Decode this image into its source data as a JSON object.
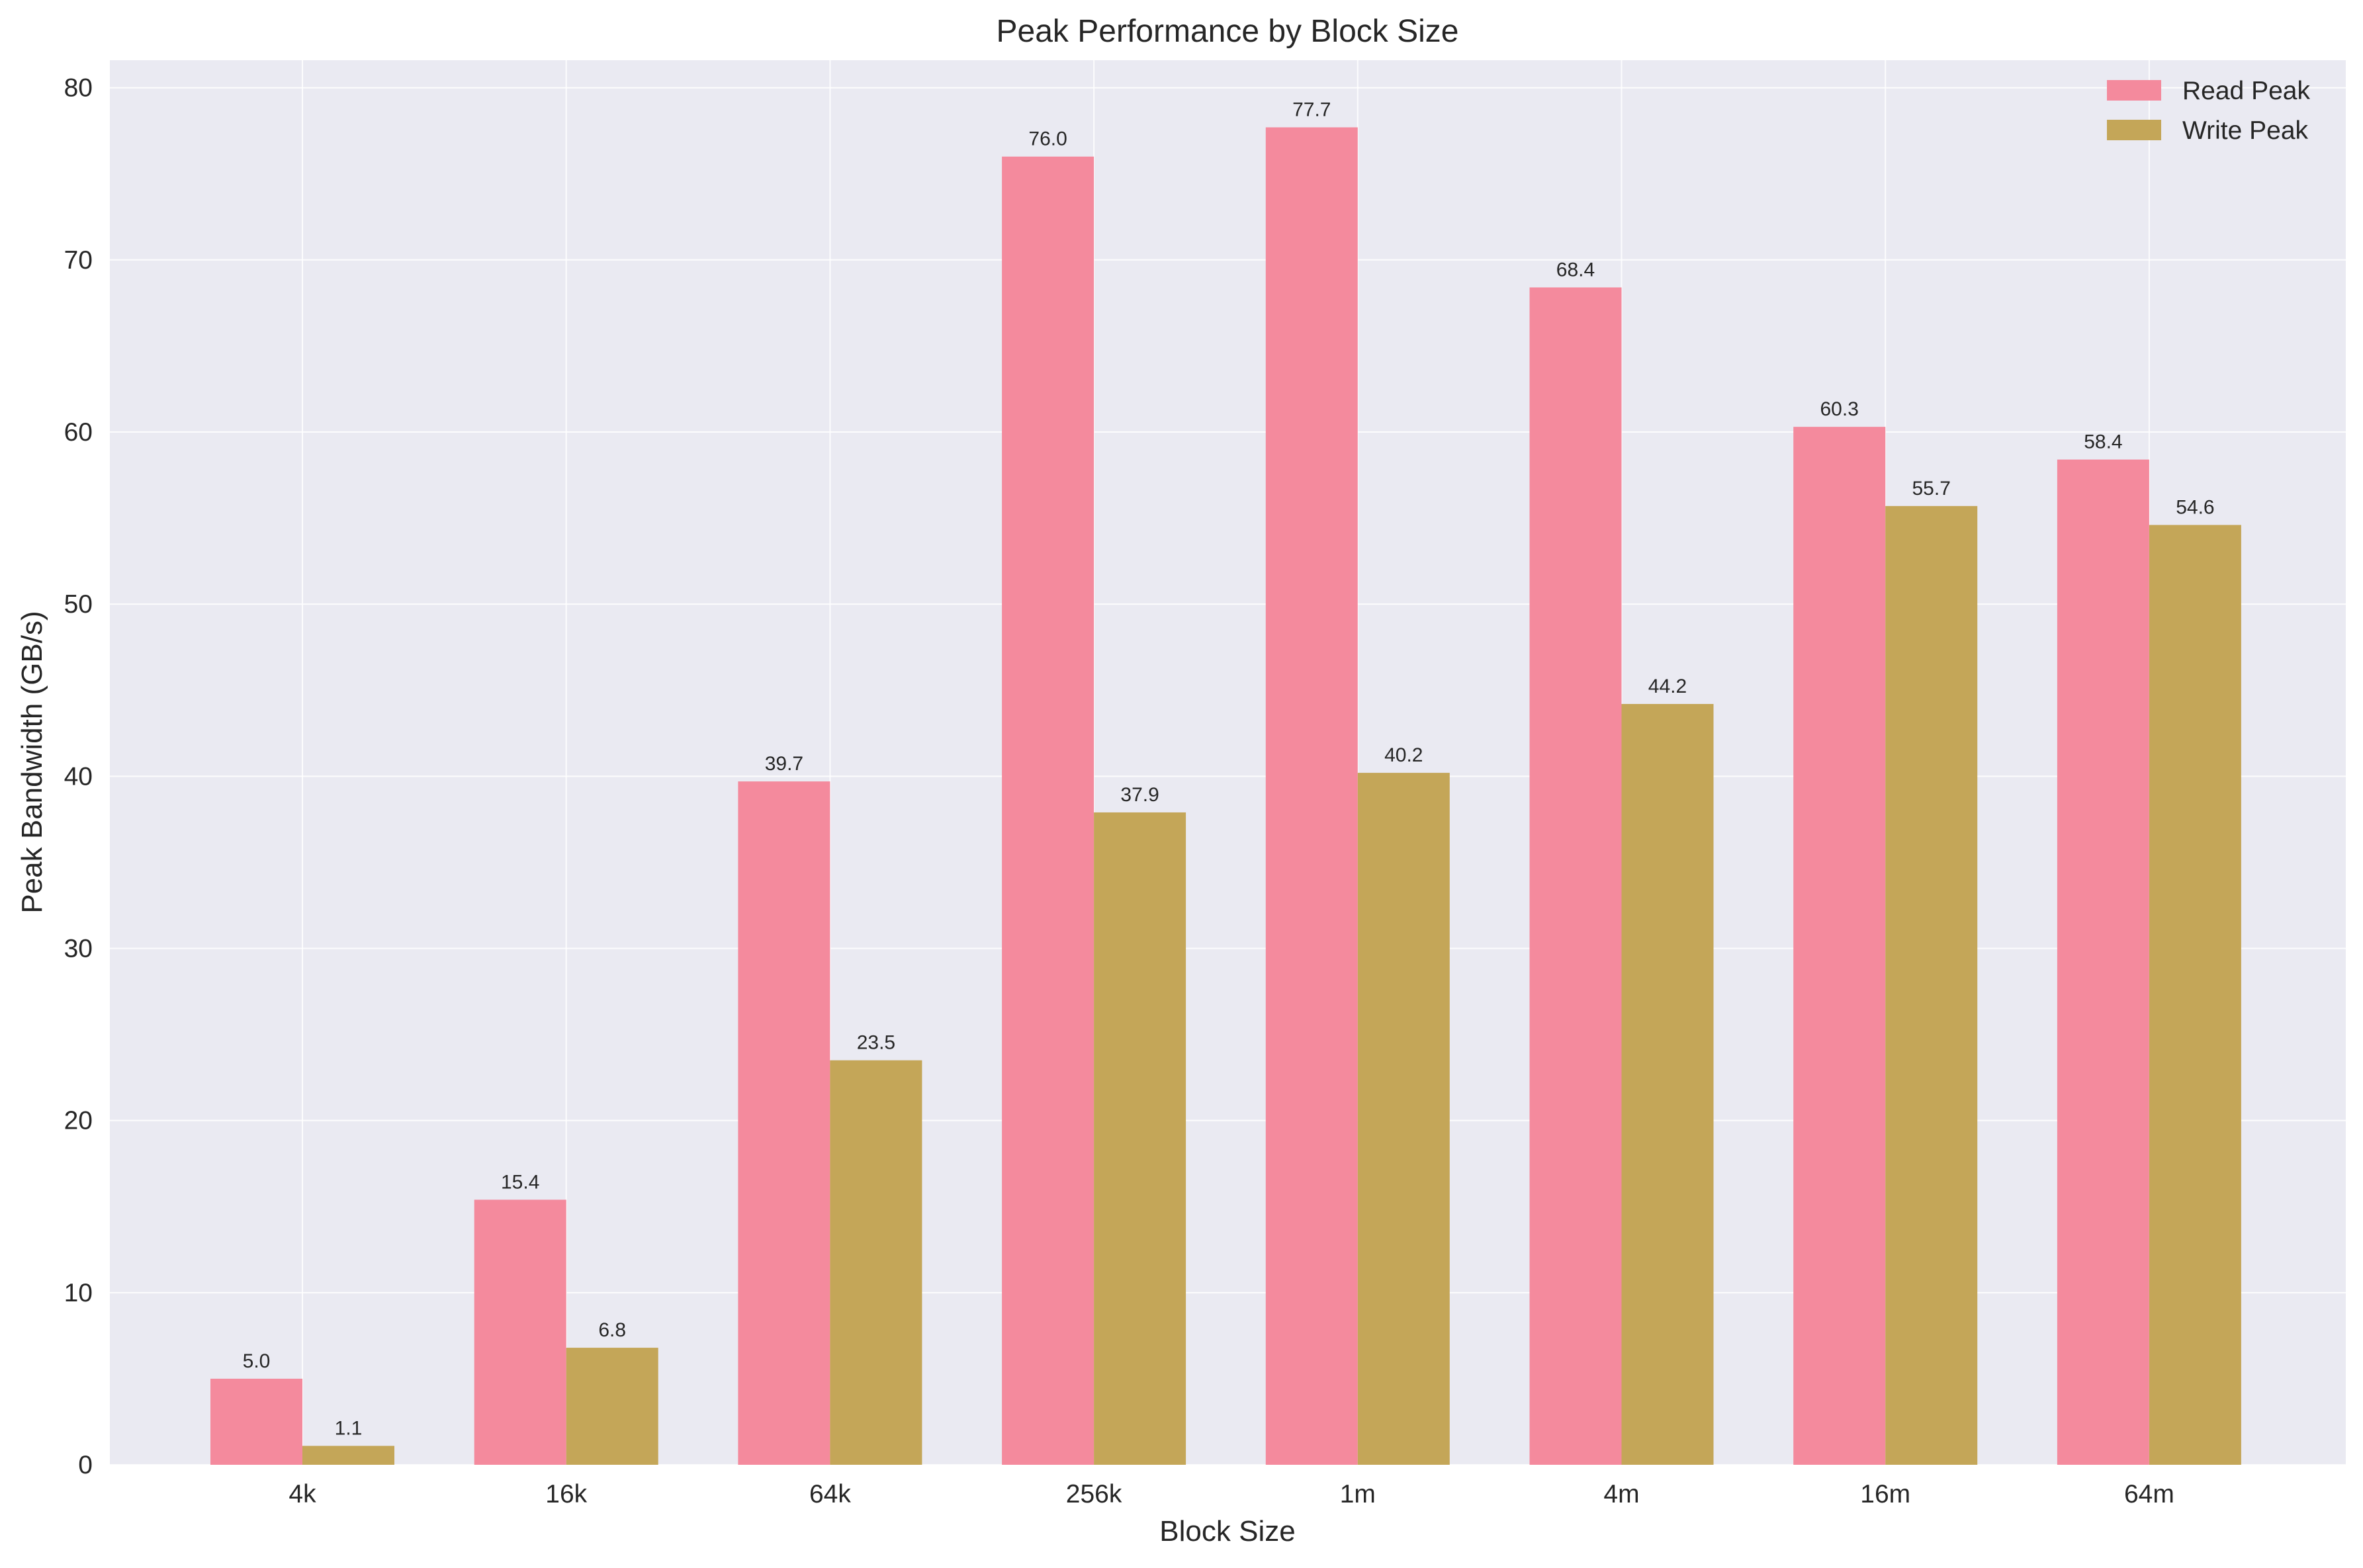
{
  "chart_data": {
    "type": "bar",
    "title": "Peak Performance by Block Size",
    "xlabel": "Block Size",
    "ylabel": "Peak Bandwidth (GB/s)",
    "categories": [
      "4k",
      "16k",
      "64k",
      "256k",
      "1m",
      "4m",
      "16m",
      "64m"
    ],
    "series": [
      {
        "name": "Read Peak",
        "color": "#f48a9d",
        "values": [
          5.0,
          15.4,
          39.7,
          76.0,
          77.7,
          68.4,
          60.3,
          58.4
        ],
        "labels": [
          "5.0",
          "15.4",
          "39.7",
          "76.0",
          "77.7",
          "68.4",
          "60.3",
          "58.4"
        ]
      },
      {
        "name": "Write Peak",
        "color": "#c4a658",
        "values": [
          1.1,
          6.8,
          23.5,
          37.9,
          40.2,
          44.2,
          55.7,
          54.6
        ],
        "labels": [
          "1.1",
          "6.8",
          "23.5",
          "37.9",
          "40.2",
          "44.2",
          "55.7",
          "54.6"
        ]
      }
    ],
    "ylim": [
      0,
      81.6
    ],
    "yticks": [
      0,
      10,
      20,
      30,
      40,
      50,
      60,
      70,
      80
    ],
    "ytick_labels": [
      "0",
      "10",
      "20",
      "30",
      "40",
      "50",
      "60",
      "70",
      "80"
    ],
    "grid": true,
    "legend_position": "top-right"
  }
}
